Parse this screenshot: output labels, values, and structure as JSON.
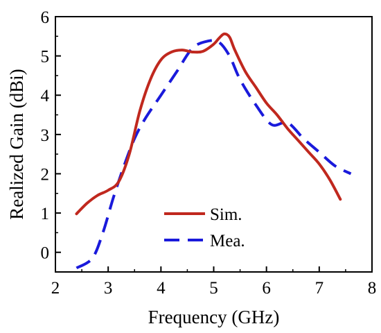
{
  "chart_data": {
    "type": "line",
    "title": "",
    "xlabel": "Frequency (GHz)",
    "ylabel": "Realized Gain (dBi)",
    "xlim": [
      2,
      8
    ],
    "ylim": [
      -0.5,
      6
    ],
    "xticks": [
      2,
      3,
      4,
      5,
      6,
      7,
      8
    ],
    "yticks": [
      0,
      1,
      2,
      3,
      4,
      5,
      6
    ],
    "x_tick_labels": [
      "2",
      "3",
      "4",
      "5",
      "6",
      "7",
      "8"
    ],
    "y_tick_labels": [
      "0",
      "1",
      "2",
      "3",
      "4",
      "5",
      "6"
    ],
    "grid": false,
    "legend_position": "lower-center",
    "series": [
      {
        "name": "Sim.",
        "color": "#c0281e",
        "style": "solid",
        "x": [
          2.4,
          2.6,
          2.8,
          3.0,
          3.2,
          3.4,
          3.6,
          3.8,
          4.0,
          4.2,
          4.4,
          4.6,
          4.8,
          5.0,
          5.1,
          5.2,
          5.3,
          5.4,
          5.6,
          5.8,
          6.0,
          6.2,
          6.4,
          6.6,
          6.8,
          7.0,
          7.2,
          7.4
        ],
        "y": [
          0.98,
          1.25,
          1.45,
          1.58,
          1.8,
          2.5,
          3.6,
          4.4,
          4.9,
          5.1,
          5.15,
          5.1,
          5.12,
          5.3,
          5.45,
          5.56,
          5.48,
          5.15,
          4.6,
          4.2,
          3.8,
          3.5,
          3.15,
          2.85,
          2.55,
          2.25,
          1.85,
          1.35
        ]
      },
      {
        "name": "Mea.",
        "color": "#1a1adb",
        "style": "dashed",
        "x": [
          2.4,
          2.7,
          2.9,
          3.1,
          3.3,
          3.5,
          3.7,
          4.0,
          4.3,
          4.6,
          4.9,
          5.1,
          5.3,
          5.5,
          5.8,
          6.1,
          6.4,
          6.7,
          7.0,
          7.3,
          7.6
        ],
        "y": [
          -0.4,
          -0.15,
          0.5,
          1.4,
          2.2,
          2.9,
          3.4,
          4.0,
          4.6,
          5.2,
          5.38,
          5.35,
          5.0,
          4.4,
          3.75,
          3.25,
          3.3,
          2.9,
          2.55,
          2.2,
          2.0
        ]
      }
    ]
  }
}
